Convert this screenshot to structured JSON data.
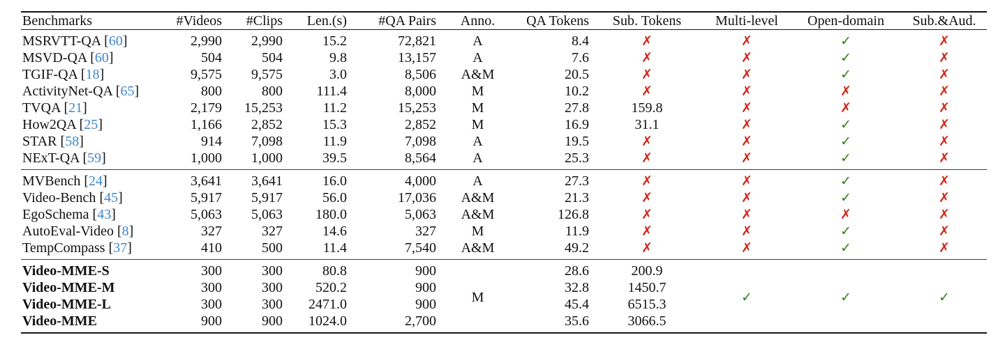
{
  "colors": {
    "check_green": "#2e7d0e",
    "cross_red": "#d12717",
    "cite_blue": "#3f85cc"
  },
  "icons": {
    "check_icon": "✓",
    "cross_icon": "✗"
  },
  "table": {
    "columns": [
      {
        "key": "name",
        "label": "Benchmarks",
        "align": "left"
      },
      {
        "key": "videos",
        "label": "#Videos",
        "align": "right"
      },
      {
        "key": "clips",
        "label": "#Clips",
        "align": "right"
      },
      {
        "key": "len",
        "label": "Len.(s)",
        "align": "right"
      },
      {
        "key": "qa_pairs",
        "label": "#QA Pairs",
        "align": "right"
      },
      {
        "key": "anno",
        "label": "Anno.",
        "align": "center"
      },
      {
        "key": "qa_tokens",
        "label": "QA Tokens",
        "align": "right"
      },
      {
        "key": "sub_tokens",
        "label": "Sub. Tokens",
        "align": "center"
      },
      {
        "key": "multi_level",
        "label": "Multi-level",
        "align": "center"
      },
      {
        "key": "open_domain",
        "label": "Open-domain",
        "align": "center"
      },
      {
        "key": "sub_aud",
        "label": "Sub.&Aud.",
        "align": "center"
      }
    ],
    "groups": [
      {
        "bold": false,
        "rows": [
          {
            "name": "MSRVTT-QA",
            "cite": "60",
            "videos": "2,990",
            "clips": "2,990",
            "len": "15.2",
            "qa_pairs": "72,821",
            "anno": "A",
            "qa_tokens": "8.4",
            "sub_tokens": "no",
            "multi_level": "no",
            "open_domain": "yes",
            "sub_aud": "no"
          },
          {
            "name": "MSVD-QA",
            "cite": "60",
            "videos": "504",
            "clips": "504",
            "len": "9.8",
            "qa_pairs": "13,157",
            "anno": "A",
            "qa_tokens": "7.6",
            "sub_tokens": "no",
            "multi_level": "no",
            "open_domain": "yes",
            "sub_aud": "no"
          },
          {
            "name": "TGIF-QA",
            "cite": "18",
            "videos": "9,575",
            "clips": "9,575",
            "len": "3.0",
            "qa_pairs": "8,506",
            "anno": "A&M",
            "qa_tokens": "20.5",
            "sub_tokens": "no",
            "multi_level": "no",
            "open_domain": "yes",
            "sub_aud": "no"
          },
          {
            "name": "ActivityNet-QA",
            "cite": "65",
            "videos": "800",
            "clips": "800",
            "len": "111.4",
            "qa_pairs": "8,000",
            "anno": "M",
            "qa_tokens": "10.2",
            "sub_tokens": "no",
            "multi_level": "no",
            "open_domain": "no",
            "sub_aud": "no"
          },
          {
            "name": "TVQA",
            "cite": "21",
            "videos": "2,179",
            "clips": "15,253",
            "len": "11.2",
            "qa_pairs": "15,253",
            "anno": "M",
            "qa_tokens": "27.8",
            "sub_tokens": "159.8",
            "multi_level": "no",
            "open_domain": "no",
            "sub_aud": "no"
          },
          {
            "name": "How2QA",
            "cite": "25",
            "videos": "1,166",
            "clips": "2,852",
            "len": "15.3",
            "qa_pairs": "2,852",
            "anno": "M",
            "qa_tokens": "16.9",
            "sub_tokens": "31.1",
            "multi_level": "no",
            "open_domain": "yes",
            "sub_aud": "no"
          },
          {
            "name": "STAR",
            "cite": "58",
            "videos": "914",
            "clips": "7,098",
            "len": "11.9",
            "qa_pairs": "7,098",
            "anno": "A",
            "qa_tokens": "19.5",
            "sub_tokens": "no",
            "multi_level": "no",
            "open_domain": "yes",
            "sub_aud": "no"
          },
          {
            "name": "NExT-QA",
            "cite": "59",
            "videos": "1,000",
            "clips": "1,000",
            "len": "39.5",
            "qa_pairs": "8,564",
            "anno": "A",
            "qa_tokens": "25.3",
            "sub_tokens": "no",
            "multi_level": "no",
            "open_domain": "yes",
            "sub_aud": "no"
          }
        ]
      },
      {
        "bold": false,
        "rows": [
          {
            "name": "MVBench",
            "cite": "24",
            "videos": "3,641",
            "clips": "3,641",
            "len": "16.0",
            "qa_pairs": "4,000",
            "anno": "A",
            "qa_tokens": "27.3",
            "sub_tokens": "no",
            "multi_level": "no",
            "open_domain": "yes",
            "sub_aud": "no"
          },
          {
            "name": "Video-Bench",
            "cite": "45",
            "videos": "5,917",
            "clips": "5,917",
            "len": "56.0",
            "qa_pairs": "17,036",
            "anno": "A&M",
            "qa_tokens": "21.3",
            "sub_tokens": "no",
            "multi_level": "no",
            "open_domain": "yes",
            "sub_aud": "no"
          },
          {
            "name": "EgoSchema",
            "cite": "43",
            "videos": "5,063",
            "clips": "5,063",
            "len": "180.0",
            "qa_pairs": "5,063",
            "anno": "A&M",
            "qa_tokens": "126.8",
            "sub_tokens": "no",
            "multi_level": "no",
            "open_domain": "no",
            "sub_aud": "no"
          },
          {
            "name": "AutoEval-Video",
            "cite": "8",
            "videos": "327",
            "clips": "327",
            "len": "14.6",
            "qa_pairs": "327",
            "anno": "M",
            "qa_tokens": "11.9",
            "sub_tokens": "no",
            "multi_level": "no",
            "open_domain": "yes",
            "sub_aud": "no"
          },
          {
            "name": "TempCompass",
            "cite": "37",
            "videos": "410",
            "clips": "500",
            "len": "11.4",
            "qa_pairs": "7,540",
            "anno": "A&M",
            "qa_tokens": "49.2",
            "sub_tokens": "no",
            "multi_level": "no",
            "open_domain": "yes",
            "sub_aud": "no"
          }
        ]
      },
      {
        "bold": true,
        "merged": {
          "anno": "M",
          "multi_level": "yes",
          "open_domain": "yes",
          "sub_aud": "yes"
        },
        "rows": [
          {
            "name": "Video-MME-S",
            "cite": null,
            "videos": "300",
            "clips": "300",
            "len": "80.8",
            "qa_pairs": "900",
            "qa_tokens": "28.6",
            "sub_tokens": "200.9"
          },
          {
            "name": "Video-MME-M",
            "cite": null,
            "videos": "300",
            "clips": "300",
            "len": "520.2",
            "qa_pairs": "900",
            "qa_tokens": "32.8",
            "sub_tokens": "1450.7"
          },
          {
            "name": "Video-MME-L",
            "cite": null,
            "videos": "300",
            "clips": "300",
            "len": "2471.0",
            "qa_pairs": "900",
            "qa_tokens": "45.4",
            "sub_tokens": "6515.3"
          },
          {
            "name": "Video-MME",
            "cite": null,
            "videos": "900",
            "clips": "900",
            "len": "1024.0",
            "qa_pairs": "2,700",
            "qa_tokens": "35.6",
            "sub_tokens": "3066.5"
          }
        ]
      }
    ]
  }
}
